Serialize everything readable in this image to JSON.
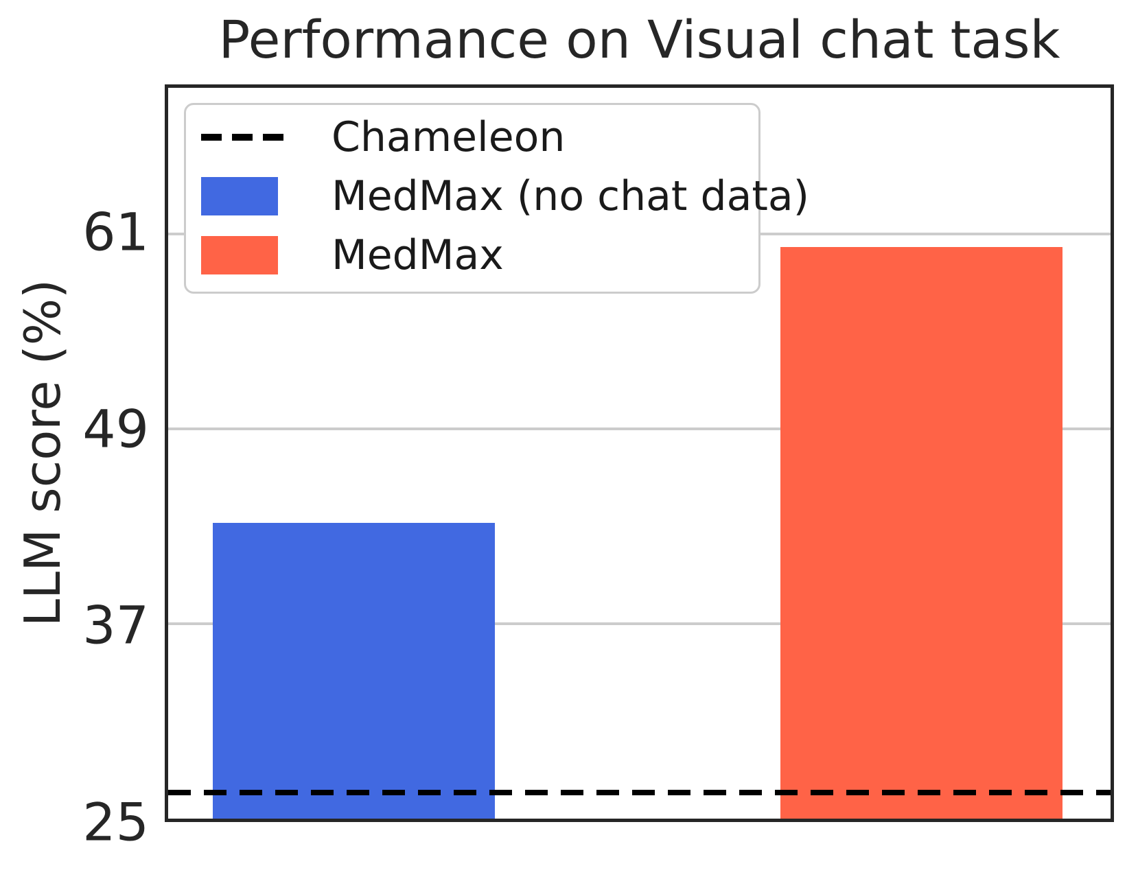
{
  "chart_data": {
    "type": "bar",
    "title": "Performance on Visual chat task",
    "xlabel": "",
    "ylabel": "LLM score (%)",
    "categories": [
      "MedMax (no chat data)",
      "MedMax"
    ],
    "values": [
      43.2,
      60.2
    ],
    "bar_colors": [
      "#4169E1",
      "#FF6347"
    ],
    "baseline": {
      "label": "Chameleon",
      "value": 26.6,
      "style": "dashed",
      "color": "#000000"
    },
    "yticks": [
      25,
      37,
      49,
      61
    ],
    "ylim": [
      25,
      70
    ],
    "grid": "horizontal",
    "grid_color": "#cccccc",
    "spine_color": "#262626",
    "legend_position": "upper left",
    "layout": {
      "bar_centers_frac": [
        0.197,
        0.7995
      ],
      "bar_width_frac": 0.299
    }
  },
  "legend": {
    "items": [
      {
        "label": "Chameleon",
        "handle": "dashed-line",
        "color": "#000000"
      },
      {
        "label": "MedMax (no chat data)",
        "handle": "swatch",
        "color": "#4169E1"
      },
      {
        "label": "MedMax",
        "handle": "swatch",
        "color": "#FF6347"
      }
    ]
  }
}
